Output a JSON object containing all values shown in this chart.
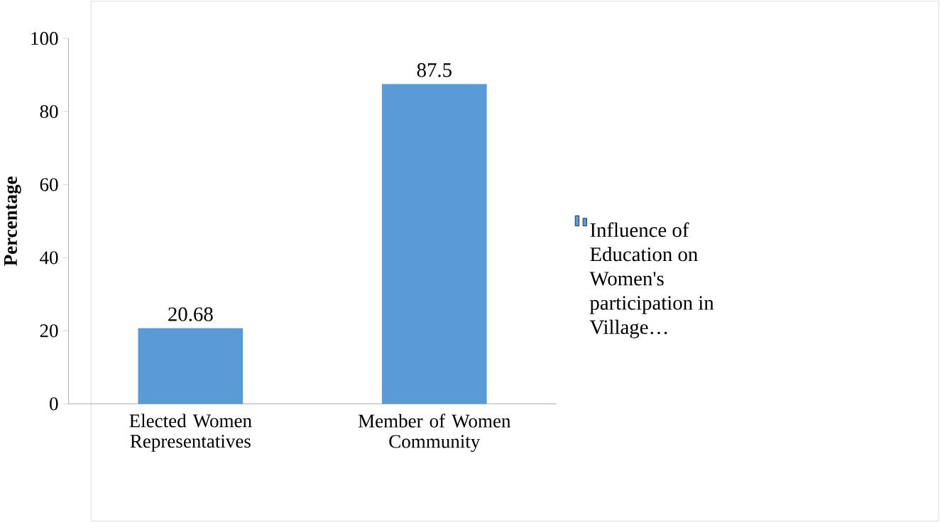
{
  "chart_data": {
    "type": "bar",
    "ylabel": "Percentage",
    "categories": [
      "Elected Women Representatives",
      "Member of Women Community"
    ],
    "series": [
      {
        "name": "Influence of Education on Women's participation in Village…",
        "color": "#5b9bd5",
        "values": [
          20.68,
          87.5
        ]
      }
    ],
    "ylim": [
      0,
      100
    ],
    "yticks": [
      0,
      20,
      40,
      60,
      80,
      100
    ],
    "data_labels": true,
    "legend": "right",
    "grid": false
  }
}
